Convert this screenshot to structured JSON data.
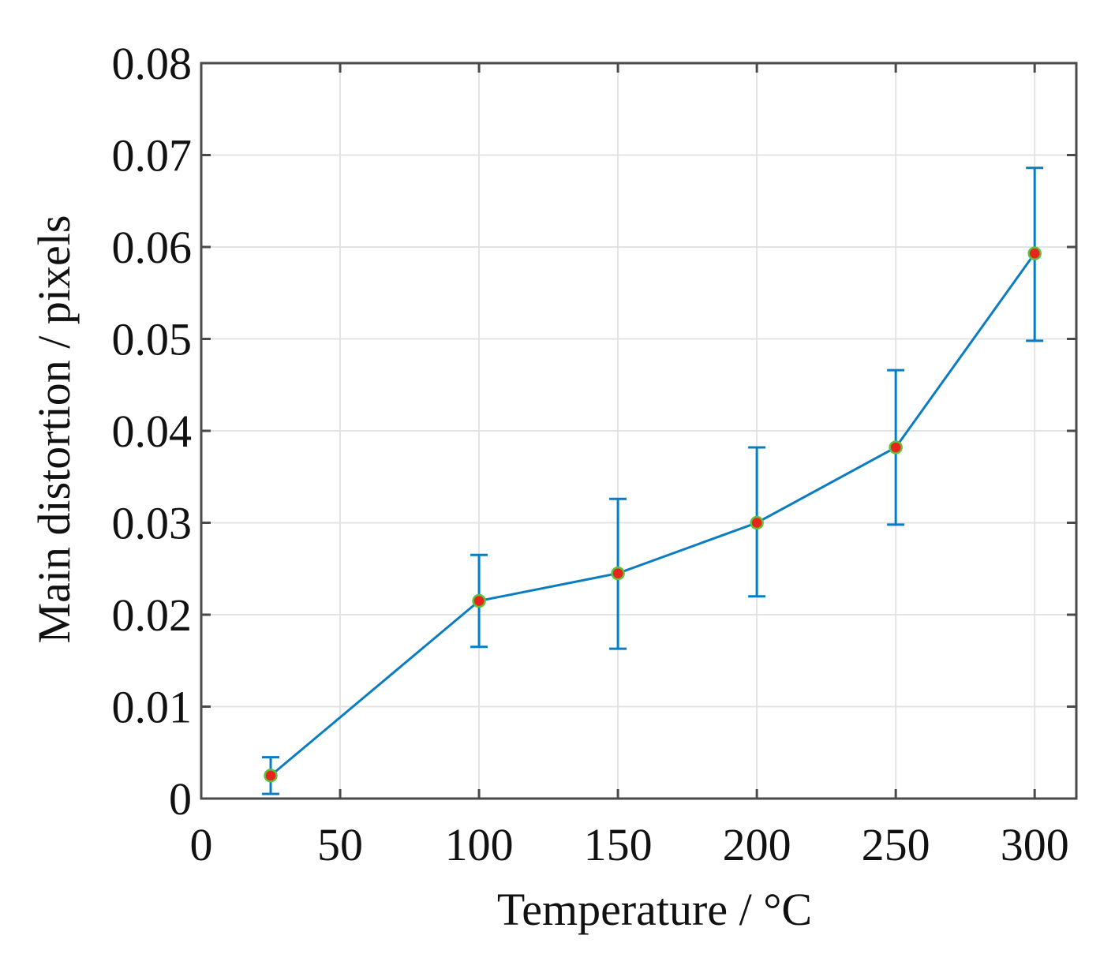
{
  "chart_data": {
    "type": "line",
    "title": "",
    "xlabel": "Temperature / °C",
    "ylabel": "Main distortion / pixels",
    "xlim": [
      0,
      315
    ],
    "ylim": [
      0,
      0.08
    ],
    "xticks": [
      0,
      50,
      100,
      150,
      200,
      250,
      300
    ],
    "xtick_labels": [
      "0",
      "50",
      "100",
      "150",
      "200",
      "250",
      "300"
    ],
    "yticks": [
      0,
      0.01,
      0.02,
      0.03,
      0.04,
      0.05,
      0.06,
      0.07,
      0.08
    ],
    "ytick_labels": [
      "0",
      "0.01",
      "0.02",
      "0.03",
      "0.04",
      "0.05",
      "0.06",
      "0.07",
      "0.08"
    ],
    "grid": true,
    "series": [
      {
        "name": "Main distortion",
        "x": [
          25,
          100,
          150,
          200,
          250,
          300
        ],
        "values": [
          0.0025,
          0.0215,
          0.0245,
          0.03,
          0.0382,
          0.0593
        ],
        "err_lower": [
          0.0005,
          0.0165,
          0.0163,
          0.022,
          0.0298,
          0.0498
        ],
        "err_upper": [
          0.0045,
          0.0265,
          0.0326,
          0.0382,
          0.0466,
          0.0686
        ]
      }
    ],
    "colors": {
      "line": "#0a7dc2",
      "errorbar": "#0a7dc2",
      "marker_fill": "#e8241c",
      "marker_edge": "#5cc23a"
    }
  }
}
